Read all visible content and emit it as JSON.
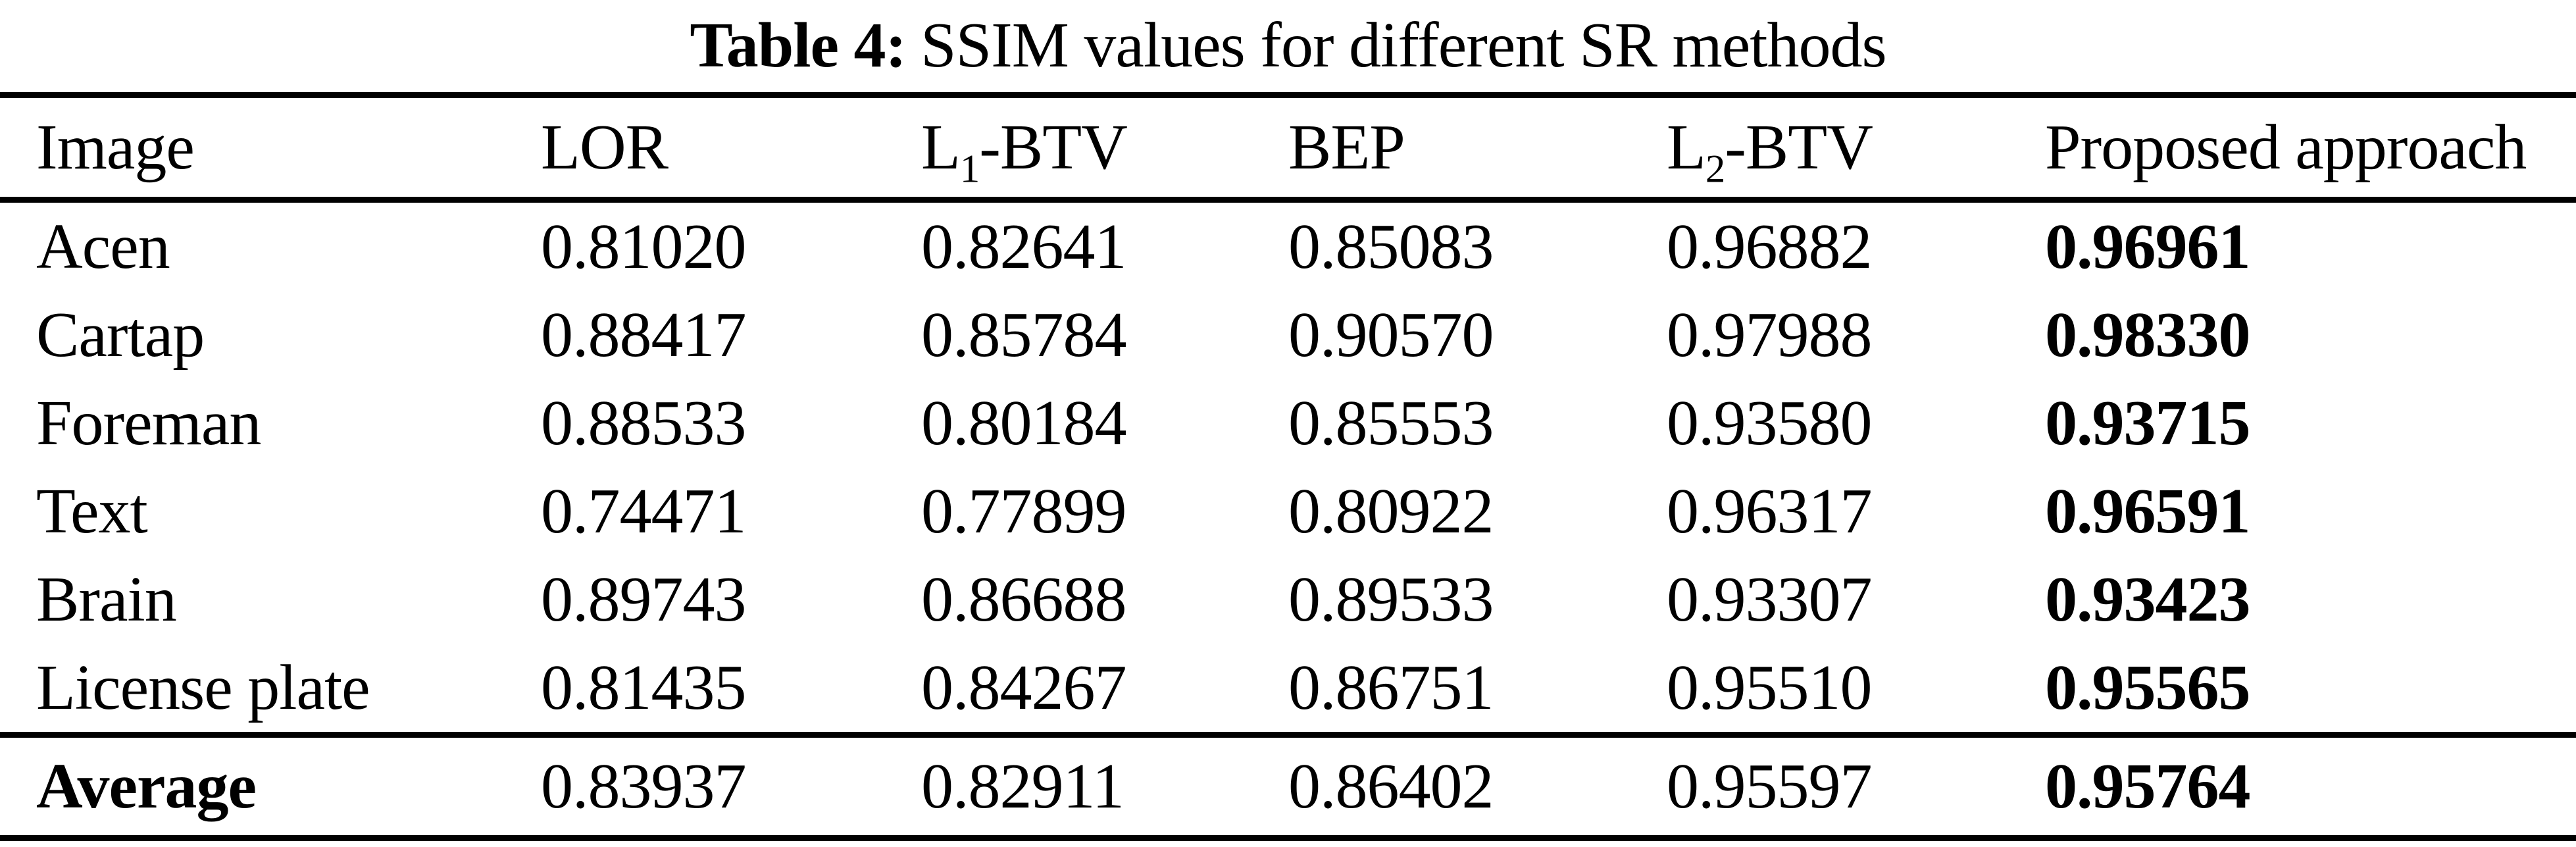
{
  "page": {
    "background_color": "#ffffff",
    "text_color": "#000000",
    "rule_color": "#000000"
  },
  "caption": {
    "label": "Table 4:",
    "text": "SSIM values for different SR methods"
  },
  "table": {
    "columns": [
      {
        "pre": "Image",
        "sub": "",
        "post": ""
      },
      {
        "pre": "LOR",
        "sub": "",
        "post": ""
      },
      {
        "pre": "L",
        "sub": "1",
        "post": "-BTV"
      },
      {
        "pre": "BEP",
        "sub": "",
        "post": ""
      },
      {
        "pre": "L",
        "sub": "2",
        "post": "-BTV"
      },
      {
        "pre": "Proposed approach",
        "sub": "",
        "post": ""
      }
    ],
    "rows": [
      {
        "image": "Acen",
        "lor": "0.81020",
        "l1btv": "0.82641",
        "bep": "0.85083",
        "l2btv": "0.96882",
        "proposed": "0.96961"
      },
      {
        "image": "Cartap",
        "lor": "0.88417",
        "l1btv": "0.85784",
        "bep": "0.90570",
        "l2btv": "0.97988",
        "proposed": "0.98330"
      },
      {
        "image": "Foreman",
        "lor": "0.88533",
        "l1btv": "0.80184",
        "bep": "0.85553",
        "l2btv": "0.93580",
        "proposed": "0.93715"
      },
      {
        "image": "Text",
        "lor": "0.74471",
        "l1btv": "0.77899",
        "bep": "0.80922",
        "l2btv": "0.96317",
        "proposed": "0.96591"
      },
      {
        "image": "Brain",
        "lor": "0.89743",
        "l1btv": "0.86688",
        "bep": "0.89533",
        "l2btv": "0.93307",
        "proposed": "0.93423"
      },
      {
        "image": "License plate",
        "lor": "0.81435",
        "l1btv": "0.84267",
        "bep": "0.86751",
        "l2btv": "0.95510",
        "proposed": "0.95565"
      }
    ],
    "footer_row": {
      "image": "Average",
      "lor": "0.83937",
      "l1btv": "0.82911",
      "bep": "0.86402",
      "l2btv": "0.95597",
      "proposed": "0.95764"
    }
  }
}
